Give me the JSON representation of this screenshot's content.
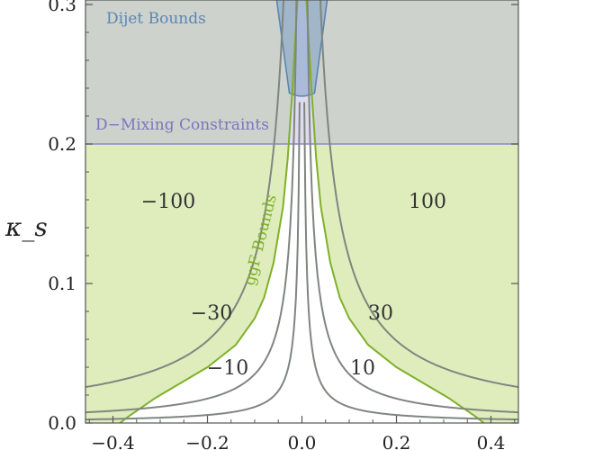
{
  "chart_data": {
    "type": "contour",
    "title": "",
    "xlabel": "",
    "ylabel": "κ_s",
    "xlim": [
      -0.45,
      0.45
    ],
    "ylim": [
      0.0,
      0.32
    ],
    "x_ticks": [
      -0.4,
      -0.2,
      0.0,
      0.2,
      0.4
    ],
    "x_tick_labels": [
      "−0.4",
      "−0.2",
      "0.0",
      "0.2",
      "0.4"
    ],
    "y_ticks": [
      0.0,
      0.1,
      0.2,
      0.3
    ],
    "y_tick_labels": [
      "0.0",
      "0.1",
      "0.2",
      "0.3"
    ],
    "contours": [
      {
        "label": "10",
        "side": "right",
        "k": 0.00115
      },
      {
        "label": "30",
        "side": "right",
        "k": 0.0035
      },
      {
        "label": "100",
        "side": "right",
        "k": 0.0118
      },
      {
        "label": "−10",
        "side": "left",
        "k": 0.00115
      },
      {
        "label": "−30",
        "side": "left",
        "k": 0.0035
      },
      {
        "label": "−100",
        "side": "left",
        "k": 0.0118
      }
    ],
    "regions": {
      "ggf": {
        "label": "ggF Bounds",
        "color": "#7fb02a",
        "fill": "#d9eab2",
        "allowed_boundary": [
          [
            0.006,
            0.32
          ],
          [
            0.01,
            0.3
          ],
          [
            0.02,
            0.24
          ],
          [
            0.03,
            0.19
          ],
          [
            0.04,
            0.155
          ],
          [
            0.06,
            0.115
          ],
          [
            0.08,
            0.09
          ],
          [
            0.1,
            0.075
          ],
          [
            0.14,
            0.056
          ],
          [
            0.2,
            0.04
          ],
          [
            0.26,
            0.028
          ],
          [
            0.31,
            0.018
          ],
          [
            0.34,
            0.011
          ],
          [
            0.37,
            0.004
          ],
          [
            0.385,
            0.0
          ]
        ]
      },
      "dmixing": {
        "label": "D−Mixing Constraints",
        "color": "#8e88c8",
        "fill": "#b7b2de",
        "kappa_s_min": 0.2
      },
      "dijet": {
        "label": "Dijet Bounds",
        "color": "#5a86b3",
        "fill": "#7d9fc6",
        "vertex": [
          0.0,
          0.234
        ],
        "slope": 1.35
      }
    }
  }
}
